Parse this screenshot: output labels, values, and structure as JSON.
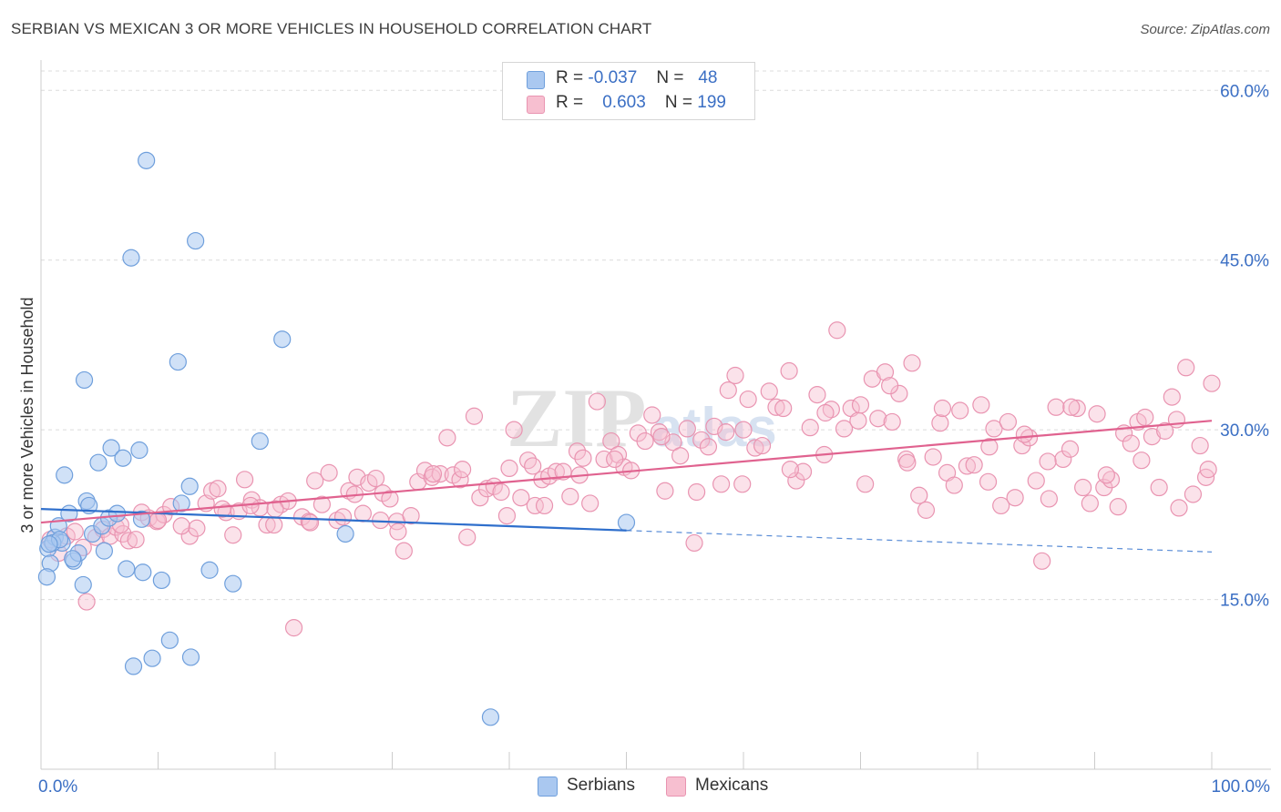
{
  "title": "SERBIAN VS MEXICAN 3 OR MORE VEHICLES IN HOUSEHOLD CORRELATION CHART",
  "source": "Source: ZipAtlas.com",
  "watermark": {
    "zip": "ZIP",
    "atlas": "atlas"
  },
  "legend": {
    "serbians": {
      "r_label": "R =",
      "r_value": "-0.037",
      "n_label": "N =",
      "n_value": "48"
    },
    "mexicans": {
      "r_label": "R =",
      "r_value": "0.603",
      "n_label": "N =",
      "n_value": "199"
    }
  },
  "bottom_legend": {
    "serbians": "Serbians",
    "mexicans": "Mexicans"
  },
  "colors": {
    "serbian_fill": "#aac8f0",
    "serbian_stroke": "#6f9fdc",
    "serbian_line": "#2f6fcc",
    "mexican_fill": "#f7bfd0",
    "mexican_stroke": "#e994b1",
    "mexican_line": "#e0628f",
    "axis_label": "#3b6fc4",
    "grid": "#dcdcdc"
  },
  "chart_data": {
    "type": "scatter",
    "title": "SERBIAN VS MEXICAN 3 OR MORE VEHICLES IN HOUSEHOLD CORRELATION CHART",
    "xlabel": "",
    "ylabel": "3 or more Vehicles in Household",
    "xlim": [
      0,
      100
    ],
    "ylim": [
      0,
      63
    ],
    "x_tick_labels": [
      "0.0%",
      "100.0%"
    ],
    "y_ticks": [
      15,
      30,
      45,
      60
    ],
    "y_tick_labels": [
      "15.0%",
      "30.0%",
      "45.0%",
      "60.0%"
    ],
    "grid": true,
    "series": [
      {
        "name": "Serbians",
        "R": -0.037,
        "N": 48,
        "trend": {
          "x0": 0,
          "y0": 23.0,
          "x1": 50,
          "y1": 21.1,
          "dashed_to_x": 100,
          "dashed_y1": 19.2
        },
        "points": [
          [
            0.6,
            19.5
          ],
          [
            0.8,
            18.2
          ],
          [
            0.5,
            17.0
          ],
          [
            1.2,
            20.5
          ],
          [
            1.5,
            21.5
          ],
          [
            1.8,
            20.0
          ],
          [
            2.0,
            26.0
          ],
          [
            2.4,
            22.6
          ],
          [
            2.8,
            18.4
          ],
          [
            3.2,
            19.1
          ],
          [
            3.6,
            16.3
          ],
          [
            3.9,
            23.7
          ],
          [
            4.1,
            23.3
          ],
          [
            4.4,
            20.8
          ],
          [
            4.9,
            27.1
          ],
          [
            5.2,
            21.5
          ],
          [
            5.4,
            19.3
          ],
          [
            5.8,
            22.2
          ],
          [
            6.0,
            28.4
          ],
          [
            6.5,
            22.6
          ],
          [
            7.0,
            27.5
          ],
          [
            7.3,
            17.7
          ],
          [
            7.7,
            45.2
          ],
          [
            7.9,
            9.1
          ],
          [
            8.4,
            28.2
          ],
          [
            8.6,
            22.1
          ],
          [
            8.7,
            17.4
          ],
          [
            9.0,
            53.8
          ],
          [
            9.5,
            9.8
          ],
          [
            10.3,
            16.7
          ],
          [
            11.0,
            11.4
          ],
          [
            11.7,
            36.0
          ],
          [
            12.0,
            23.5
          ],
          [
            12.7,
            25.0
          ],
          [
            12.8,
            9.9
          ],
          [
            13.2,
            46.7
          ],
          [
            14.4,
            17.6
          ],
          [
            16.4,
            16.4
          ],
          [
            18.7,
            29.0
          ],
          [
            20.6,
            38.0
          ],
          [
            26.0,
            20.8
          ],
          [
            38.4,
            4.6
          ],
          [
            50.0,
            21.8
          ],
          [
            3.7,
            34.4
          ],
          [
            1.0,
            20.0
          ],
          [
            1.6,
            20.3
          ],
          [
            0.7,
            19.9
          ],
          [
            2.7,
            18.6
          ]
        ]
      },
      {
        "name": "Mexicans",
        "R": 0.603,
        "N": 199,
        "trend": {
          "x0": 0,
          "y0": 21.8,
          "x1": 100,
          "y1": 30.8
        },
        "points": [
          [
            0.8,
            20.3
          ],
          [
            1.5,
            19.1
          ],
          [
            2.2,
            20.6
          ],
          [
            2.9,
            21.0
          ],
          [
            3.6,
            19.6
          ],
          [
            3.9,
            14.8
          ],
          [
            4.7,
            20.5
          ],
          [
            5.3,
            21.2
          ],
          [
            5.9,
            20.6
          ],
          [
            6.4,
            21.4
          ],
          [
            7.0,
            20.8
          ],
          [
            7.5,
            20.2
          ],
          [
            8.1,
            20.3
          ],
          [
            8.6,
            22.7
          ],
          [
            9.2,
            22.2
          ],
          [
            9.9,
            21.9
          ],
          [
            10.5,
            22.5
          ],
          [
            11.1,
            23.2
          ],
          [
            12.7,
            20.6
          ],
          [
            13.3,
            21.3
          ],
          [
            14.1,
            23.5
          ],
          [
            14.6,
            24.6
          ],
          [
            15.1,
            24.8
          ],
          [
            15.8,
            22.7
          ],
          [
            16.4,
            20.7
          ],
          [
            16.9,
            22.8
          ],
          [
            17.4,
            25.6
          ],
          [
            18.0,
            23.8
          ],
          [
            18.7,
            23.1
          ],
          [
            19.3,
            21.6
          ],
          [
            19.9,
            21.6
          ],
          [
            20.5,
            23.4
          ],
          [
            21.1,
            23.7
          ],
          [
            21.6,
            12.5
          ],
          [
            22.3,
            22.3
          ],
          [
            22.9,
            21.9
          ],
          [
            23.4,
            25.5
          ],
          [
            24.0,
            23.4
          ],
          [
            24.6,
            26.2
          ],
          [
            25.3,
            22.0
          ],
          [
            25.8,
            22.3
          ],
          [
            26.3,
            24.6
          ],
          [
            27.0,
            25.8
          ],
          [
            27.5,
            22.6
          ],
          [
            28.0,
            25.3
          ],
          [
            28.6,
            25.7
          ],
          [
            29.2,
            24.4
          ],
          [
            29.8,
            23.9
          ],
          [
            30.4,
            21.9
          ],
          [
            31.0,
            19.3
          ],
          [
            31.6,
            22.4
          ],
          [
            32.2,
            25.4
          ],
          [
            32.8,
            26.4
          ],
          [
            33.4,
            25.8
          ],
          [
            34.1,
            26.1
          ],
          [
            34.7,
            29.3
          ],
          [
            35.2,
            26.0
          ],
          [
            35.8,
            25.6
          ],
          [
            36.4,
            20.5
          ],
          [
            37.0,
            31.2
          ],
          [
            37.5,
            24.0
          ],
          [
            38.1,
            24.8
          ],
          [
            38.7,
            25.0
          ],
          [
            39.3,
            24.5
          ],
          [
            39.8,
            22.4
          ],
          [
            40.4,
            30.0
          ],
          [
            41.0,
            24.0
          ],
          [
            41.6,
            27.3
          ],
          [
            42.2,
            23.3
          ],
          [
            42.8,
            25.6
          ],
          [
            43.4,
            25.9
          ],
          [
            44.0,
            26.3
          ],
          [
            44.6,
            26.3
          ],
          [
            45.2,
            24.1
          ],
          [
            45.8,
            28.1
          ],
          [
            46.3,
            27.5
          ],
          [
            46.9,
            23.5
          ],
          [
            47.5,
            32.5
          ],
          [
            48.1,
            27.4
          ],
          [
            48.7,
            29.0
          ],
          [
            49.3,
            27.8
          ],
          [
            49.8,
            26.7
          ],
          [
            50.4,
            26.4
          ],
          [
            51.0,
            29.7
          ],
          [
            51.6,
            29.0
          ],
          [
            52.2,
            31.3
          ],
          [
            52.8,
            29.8
          ],
          [
            53.3,
            24.6
          ],
          [
            54.0,
            28.9
          ],
          [
            54.6,
            27.7
          ],
          [
            55.2,
            30.1
          ],
          [
            55.8,
            20.0
          ],
          [
            56.4,
            29.1
          ],
          [
            57.0,
            28.5
          ],
          [
            57.5,
            30.3
          ],
          [
            58.1,
            25.2
          ],
          [
            58.7,
            33.5
          ],
          [
            59.3,
            34.8
          ],
          [
            59.9,
            25.2
          ],
          [
            60.4,
            32.7
          ],
          [
            61.0,
            28.4
          ],
          [
            61.6,
            28.6
          ],
          [
            62.2,
            33.4
          ],
          [
            62.8,
            32.0
          ],
          [
            63.4,
            31.9
          ],
          [
            63.9,
            35.2
          ],
          [
            64.5,
            25.5
          ],
          [
            65.1,
            26.3
          ],
          [
            65.7,
            30.2
          ],
          [
            66.3,
            33.1
          ],
          [
            66.9,
            27.8
          ],
          [
            67.5,
            31.8
          ],
          [
            68.0,
            38.8
          ],
          [
            68.6,
            30.1
          ],
          [
            69.2,
            31.9
          ],
          [
            69.8,
            30.8
          ],
          [
            70.4,
            25.2
          ],
          [
            71.0,
            34.5
          ],
          [
            71.5,
            31.0
          ],
          [
            72.1,
            35.1
          ],
          [
            72.7,
            30.7
          ],
          [
            73.3,
            33.2
          ],
          [
            73.9,
            27.4
          ],
          [
            74.4,
            35.9
          ],
          [
            75.0,
            24.2
          ],
          [
            75.6,
            22.9
          ],
          [
            76.2,
            27.6
          ],
          [
            76.8,
            30.6
          ],
          [
            77.4,
            26.2
          ],
          [
            78.0,
            25.1
          ],
          [
            78.5,
            31.7
          ],
          [
            79.1,
            26.8
          ],
          [
            79.7,
            26.9
          ],
          [
            80.3,
            32.2
          ],
          [
            80.9,
            25.4
          ],
          [
            81.4,
            30.1
          ],
          [
            82.0,
            23.3
          ],
          [
            82.6,
            30.7
          ],
          [
            83.2,
            24.0
          ],
          [
            83.8,
            28.6
          ],
          [
            84.4,
            29.3
          ],
          [
            85.0,
            25.5
          ],
          [
            85.5,
            18.4
          ],
          [
            86.1,
            23.9
          ],
          [
            86.7,
            32.0
          ],
          [
            87.3,
            27.4
          ],
          [
            87.9,
            28.3
          ],
          [
            88.5,
            31.9
          ],
          [
            89.0,
            24.9
          ],
          [
            89.6,
            23.5
          ],
          [
            90.2,
            31.4
          ],
          [
            90.8,
            24.9
          ],
          [
            91.4,
            25.6
          ],
          [
            92.0,
            23.2
          ],
          [
            92.5,
            29.7
          ],
          [
            93.1,
            28.8
          ],
          [
            93.7,
            30.7
          ],
          [
            94.3,
            31.1
          ],
          [
            94.9,
            29.4
          ],
          [
            95.5,
            24.9
          ],
          [
            96.0,
            29.9
          ],
          [
            96.6,
            32.9
          ],
          [
            97.2,
            23.1
          ],
          [
            97.8,
            35.5
          ],
          [
            98.4,
            24.3
          ],
          [
            99.0,
            28.6
          ],
          [
            99.5,
            25.8
          ],
          [
            100.0,
            34.1
          ],
          [
            6.8,
            21.6
          ],
          [
            10.0,
            22.0
          ],
          [
            12.0,
            21.5
          ],
          [
            15.5,
            23.0
          ],
          [
            17.9,
            23.3
          ],
          [
            20.0,
            23.0
          ],
          [
            23.0,
            21.8
          ],
          [
            26.8,
            24.3
          ],
          [
            29.0,
            22.0
          ],
          [
            33.5,
            26.1
          ],
          [
            36.0,
            26.5
          ],
          [
            40.0,
            26.6
          ],
          [
            43.0,
            23.3
          ],
          [
            46.0,
            26.0
          ],
          [
            49.0,
            27.4
          ],
          [
            53.0,
            29.4
          ],
          [
            56.0,
            24.5
          ],
          [
            60.0,
            30.0
          ],
          [
            64.0,
            26.5
          ],
          [
            67.0,
            31.5
          ],
          [
            70.0,
            32.2
          ],
          [
            74.0,
            27.1
          ],
          [
            77.0,
            31.9
          ],
          [
            81.0,
            28.5
          ],
          [
            84.0,
            29.6
          ],
          [
            88.0,
            32.0
          ],
          [
            91.0,
            26.0
          ],
          [
            94.0,
            27.3
          ],
          [
            97.0,
            30.9
          ],
          [
            99.7,
            26.5
          ],
          [
            30.5,
            21.0
          ],
          [
            42.0,
            26.8
          ],
          [
            58.5,
            29.8
          ],
          [
            72.5,
            33.9
          ],
          [
            86.0,
            27.2
          ]
        ]
      }
    ]
  }
}
